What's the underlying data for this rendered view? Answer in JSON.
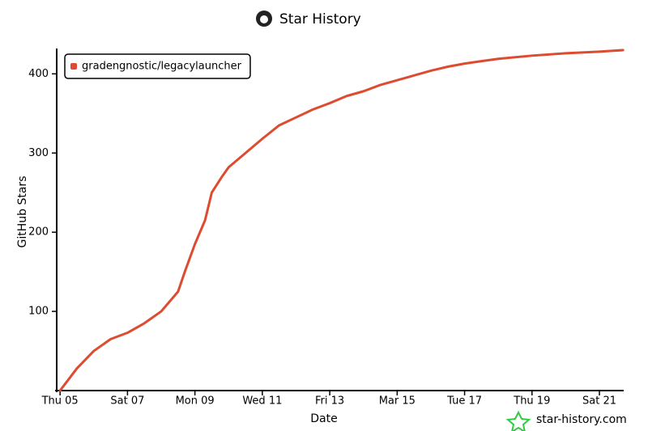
{
  "chart_data": {
    "type": "line",
    "title": "Star History",
    "x_label": "Date",
    "y_label": "GitHub Stars",
    "watermark": "star-history.com",
    "x": [
      5,
      5.5,
      6,
      6.5,
      7,
      7.5,
      8,
      8.5,
      8.7,
      9,
      9.3,
      9.5,
      9.8,
      10,
      10.5,
      11,
      11.5,
      12,
      12.5,
      13,
      13.5,
      14,
      14.5,
      15,
      15.5,
      16,
      16.5,
      17,
      17.5,
      18,
      19,
      20,
      21,
      21.7
    ],
    "series": [
      {
        "name": "gradengnostic/legacylauncher",
        "color": "#dd4b30",
        "values": [
          0,
          28,
          50,
          65,
          73,
          85,
          100,
          125,
          150,
          185,
          215,
          250,
          270,
          282,
          300,
          318,
          335,
          345,
          355,
          363,
          372,
          378,
          386,
          392,
          398,
          404,
          409,
          413,
          416,
          419,
          423,
          426,
          428,
          430
        ]
      }
    ],
    "xlim": [
      4.9,
      21.72
    ],
    "ylim": [
      0,
      432
    ],
    "xticks": [
      {
        "value": 5,
        "label": "Thu 05"
      },
      {
        "value": 7,
        "label": "Sat 07"
      },
      {
        "value": 9,
        "label": "Mon 09"
      },
      {
        "value": 11,
        "label": "Wed 11"
      },
      {
        "value": 13,
        "label": "Fri 13"
      },
      {
        "value": 15,
        "label": "Mar 15"
      },
      {
        "value": 17,
        "label": "Tue 17"
      },
      {
        "value": 19,
        "label": "Thu 19"
      },
      {
        "value": 21,
        "label": "Sat 21"
      }
    ],
    "yticks": [
      100,
      200,
      300,
      400
    ],
    "legend": "top-left"
  }
}
